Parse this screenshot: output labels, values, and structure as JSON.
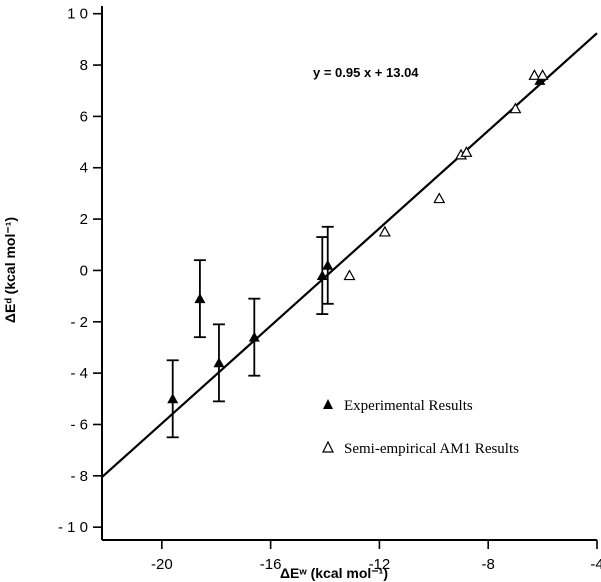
{
  "chart_data": {
    "type": "scatter",
    "xlabel": "ΔEʷ (kcal mol⁻¹)",
    "ylabel": "ΔEᵈ (kcal mol⁻¹)",
    "xlim": [
      -22.2,
      -4
    ],
    "ylim": [
      -10.5,
      10.3
    ],
    "xticks": [
      -20,
      -16,
      -12,
      -8,
      -4
    ],
    "xtick_labels": [
      "-20",
      "-16",
      "-12",
      "-8",
      "-4"
    ],
    "yticks": [
      10,
      8,
      6,
      4,
      2,
      0,
      -2,
      -4,
      -6,
      -8,
      -10
    ],
    "ytick_labels": [
      "1 0",
      "8",
      "6",
      "4",
      "2",
      "0",
      "- 2",
      "- 4",
      "- 6",
      "- 8",
      "- 1 0"
    ],
    "grid": false,
    "legend_position": "bottom-right",
    "fit": {
      "equation": "y = 0.95 x + 13.04",
      "slope": 0.95,
      "intercept": 13.04,
      "x_range": [
        -22.2,
        -4
      ]
    },
    "series": [
      {
        "name": "Experimental Results",
        "marker": "filled-triangle",
        "points": [
          {
            "x": -19.6,
            "y": -5.0,
            "yerr": 1.5
          },
          {
            "x": -18.6,
            "y": -1.1,
            "yerr": 1.5
          },
          {
            "x": -17.9,
            "y": -3.6,
            "yerr": 1.5
          },
          {
            "x": -16.6,
            "y": -2.6,
            "yerr": 1.5
          },
          {
            "x": -14.1,
            "y": -0.2,
            "yerr": 1.5
          },
          {
            "x": -13.9,
            "y": 0.2,
            "yerr": 1.5
          },
          {
            "x": -6.1,
            "y": 7.4,
            "yerr": null
          }
        ]
      },
      {
        "name": "Semi-empirical AM1 Results",
        "marker": "open-triangle",
        "points": [
          {
            "x": -13.1,
            "y": -0.2
          },
          {
            "x": -11.8,
            "y": 1.5
          },
          {
            "x": -9.8,
            "y": 2.8
          },
          {
            "x": -9.0,
            "y": 4.5
          },
          {
            "x": -8.8,
            "y": 4.6
          },
          {
            "x": -7.0,
            "y": 6.3
          },
          {
            "x": -6.3,
            "y": 7.6
          },
          {
            "x": -6.0,
            "y": 7.6
          }
        ]
      }
    ]
  }
}
